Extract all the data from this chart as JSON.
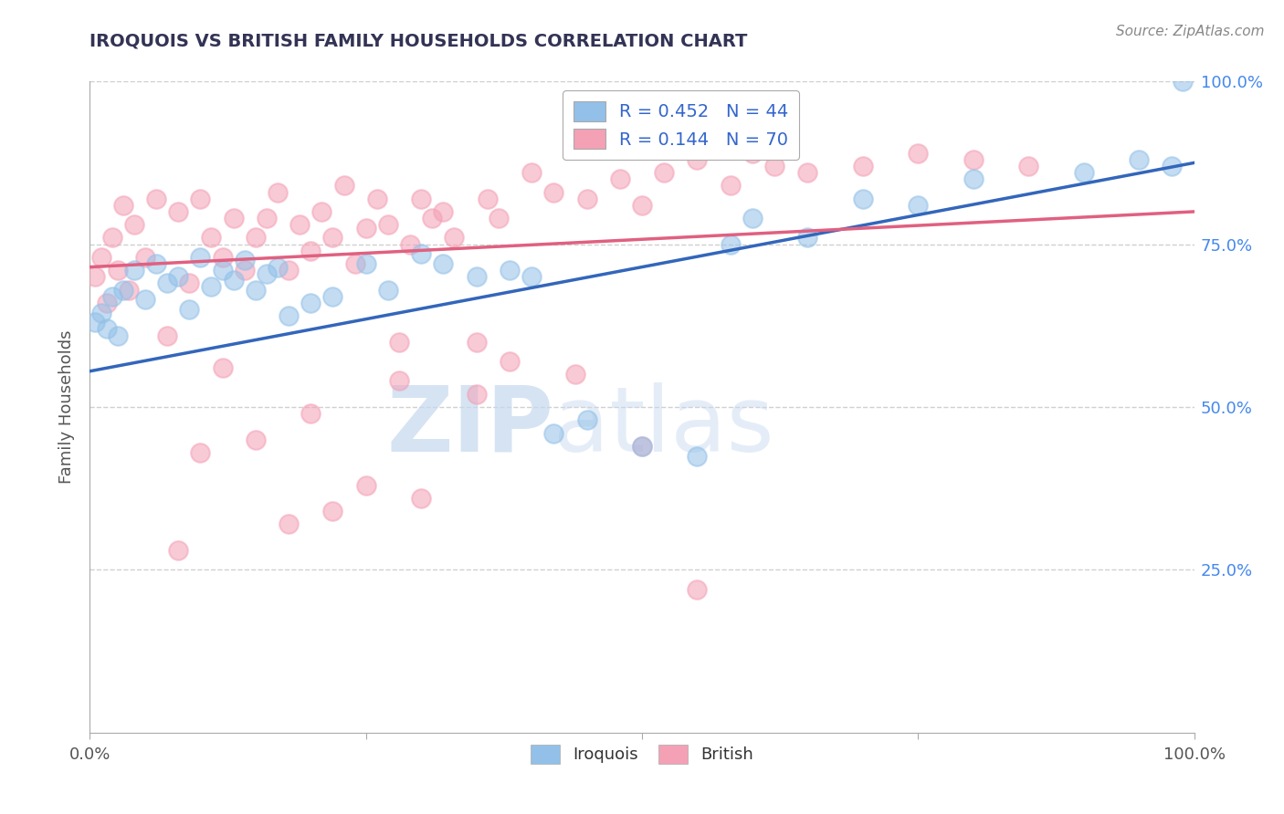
{
  "title": "IROQUOIS VS BRITISH FAMILY HOUSEHOLDS CORRELATION CHART",
  "source": "Source: ZipAtlas.com",
  "ylabel": "Family Households",
  "xlabel": "",
  "xlim": [
    0,
    1.0
  ],
  "ylim": [
    0,
    1.0
  ],
  "iroquois_color": "#92c0e8",
  "british_color": "#f4a0b5",
  "iroquois_line_color": "#3366bb",
  "british_line_color": "#e06080",
  "legend_R_iroquois": "R = 0.452",
  "legend_N_iroquois": "N = 44",
  "legend_R_british": "R = 0.144",
  "legend_N_british": "N = 70",
  "iroquois_line_x0": 0.0,
  "iroquois_line_y0": 0.555,
  "iroquois_line_x1": 1.0,
  "iroquois_line_y1": 0.875,
  "british_line_x0": 0.0,
  "british_line_y0": 0.715,
  "british_line_x1": 1.0,
  "british_line_y1": 0.8,
  "iroquois_scatter_x": [
    0.005,
    0.01,
    0.015,
    0.02,
    0.025,
    0.03,
    0.04,
    0.05,
    0.06,
    0.07,
    0.08,
    0.09,
    0.1,
    0.11,
    0.12,
    0.13,
    0.14,
    0.15,
    0.16,
    0.17,
    0.18,
    0.2,
    0.22,
    0.25,
    0.27,
    0.3,
    0.32,
    0.35,
    0.38,
    0.4,
    0.42,
    0.45,
    0.5,
    0.55,
    0.58,
    0.6,
    0.65,
    0.7,
    0.75,
    0.8,
    0.9,
    0.95,
    0.98,
    0.99
  ],
  "iroquois_scatter_y": [
    0.63,
    0.645,
    0.62,
    0.67,
    0.61,
    0.68,
    0.71,
    0.665,
    0.72,
    0.69,
    0.7,
    0.65,
    0.73,
    0.685,
    0.71,
    0.695,
    0.725,
    0.68,
    0.705,
    0.715,
    0.64,
    0.66,
    0.67,
    0.72,
    0.68,
    0.735,
    0.72,
    0.7,
    0.71,
    0.7,
    0.46,
    0.48,
    0.44,
    0.425,
    0.75,
    0.79,
    0.76,
    0.82,
    0.81,
    0.85,
    0.86,
    0.88,
    0.87,
    1.0
  ],
  "british_scatter_x": [
    0.005,
    0.01,
    0.015,
    0.02,
    0.025,
    0.03,
    0.035,
    0.04,
    0.05,
    0.06,
    0.07,
    0.08,
    0.09,
    0.1,
    0.11,
    0.12,
    0.13,
    0.14,
    0.15,
    0.16,
    0.17,
    0.18,
    0.19,
    0.2,
    0.21,
    0.22,
    0.23,
    0.24,
    0.25,
    0.26,
    0.27,
    0.28,
    0.29,
    0.3,
    0.31,
    0.32,
    0.33,
    0.35,
    0.36,
    0.37,
    0.4,
    0.42,
    0.45,
    0.48,
    0.5,
    0.52,
    0.55,
    0.58,
    0.6,
    0.62,
    0.65,
    0.7,
    0.75,
    0.8,
    0.85,
    0.35,
    0.28,
    0.2,
    0.15,
    0.1,
    0.25,
    0.3,
    0.18,
    0.22,
    0.08,
    0.12,
    0.38,
    0.44,
    0.5,
    0.55
  ],
  "british_scatter_y": [
    0.7,
    0.73,
    0.66,
    0.76,
    0.71,
    0.81,
    0.68,
    0.78,
    0.73,
    0.82,
    0.61,
    0.8,
    0.69,
    0.82,
    0.76,
    0.73,
    0.79,
    0.71,
    0.76,
    0.79,
    0.83,
    0.71,
    0.78,
    0.74,
    0.8,
    0.76,
    0.84,
    0.72,
    0.775,
    0.82,
    0.78,
    0.6,
    0.75,
    0.82,
    0.79,
    0.8,
    0.76,
    0.6,
    0.82,
    0.79,
    0.86,
    0.83,
    0.82,
    0.85,
    0.81,
    0.86,
    0.88,
    0.84,
    0.89,
    0.87,
    0.86,
    0.87,
    0.89,
    0.88,
    0.87,
    0.52,
    0.54,
    0.49,
    0.45,
    0.43,
    0.38,
    0.36,
    0.32,
    0.34,
    0.28,
    0.56,
    0.57,
    0.55,
    0.44,
    0.22
  ],
  "watermark_zip": "ZIP",
  "watermark_atlas": "atlas",
  "background_color": "#ffffff",
  "grid_color": "#d0d0d0"
}
